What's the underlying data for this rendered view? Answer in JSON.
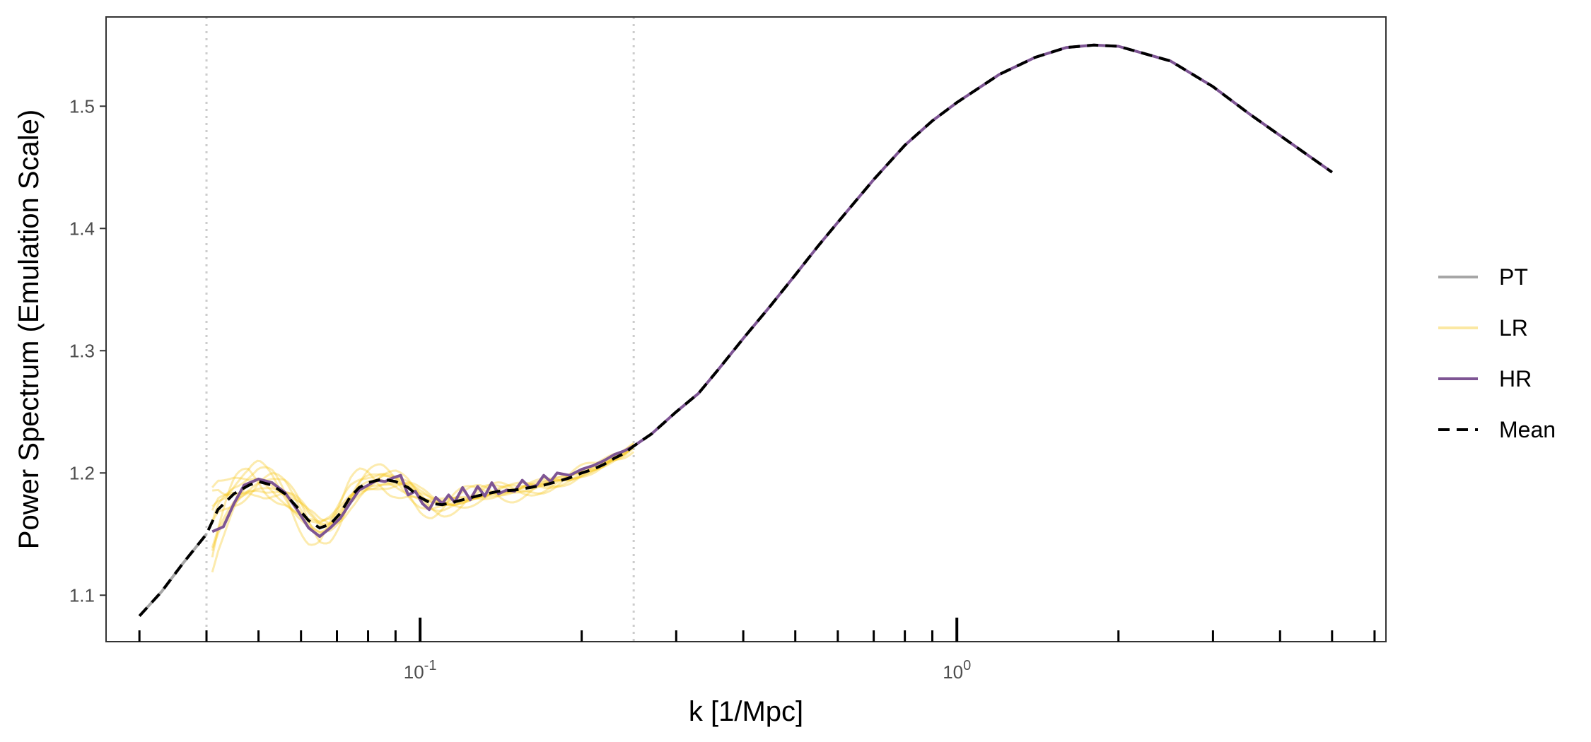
{
  "chart_data": {
    "type": "line",
    "title": "",
    "xlabel": "k [1/Mpc]",
    "ylabel": "Power Spectrum (Emulation Scale)",
    "x_scale": "log10",
    "xlim": [
      0.026,
      6.3
    ],
    "ylim": [
      1.062,
      1.573
    ],
    "x_tick_labels": [
      {
        "value": 0.1,
        "base": "10",
        "exp": "-1"
      },
      {
        "value": 1.0,
        "base": "10",
        "exp": "0"
      }
    ],
    "y_ticks": [
      1.1,
      1.2,
      1.3,
      1.4,
      1.5
    ],
    "y_tick_labels": [
      "1.1",
      "1.2",
      "1.3",
      "1.4",
      "1.5"
    ],
    "vlines": [
      0.04,
      0.25
    ],
    "grid": false,
    "legend_position": "right",
    "colors": {
      "PT": "#a6a6a6",
      "LR": "#f5c518",
      "HR": "#7e5594",
      "Mean": "#000000",
      "vline": "#cccccc"
    },
    "legend": [
      {
        "name": "PT",
        "style": "solid"
      },
      {
        "name": "LR",
        "style": "solid"
      },
      {
        "name": "HR",
        "style": "solid"
      },
      {
        "name": "Mean",
        "style": "dashed"
      }
    ],
    "series": [
      {
        "name": "PT",
        "x": [
          0.03,
          0.033,
          0.036,
          0.04
        ],
        "y": [
          1.083,
          1.103,
          1.125,
          1.15
        ]
      },
      {
        "name": "HR",
        "x": [
          0.041,
          0.043,
          0.045,
          0.047,
          0.05,
          0.053,
          0.056,
          0.059,
          0.062,
          0.065,
          0.068,
          0.071,
          0.074,
          0.077,
          0.08,
          0.083,
          0.086,
          0.089,
          0.092,
          0.095,
          0.098,
          0.101,
          0.104,
          0.107,
          0.11,
          0.113,
          0.116,
          0.12,
          0.124,
          0.128,
          0.132,
          0.136,
          0.14,
          0.145,
          0.15,
          0.155,
          0.16,
          0.165,
          0.17,
          0.175,
          0.18,
          0.19,
          0.2,
          0.21,
          0.22,
          0.23,
          0.24,
          0.25,
          0.27,
          0.3,
          0.33,
          0.36,
          0.4,
          0.45,
          0.5,
          0.55,
          0.6,
          0.7,
          0.8,
          0.9,
          1.0,
          1.2,
          1.4,
          1.6,
          1.8,
          2.0,
          2.5,
          3.0,
          3.5,
          4.0,
          5.0
        ],
        "y": [
          1.152,
          1.156,
          1.175,
          1.19,
          1.195,
          1.192,
          1.184,
          1.17,
          1.155,
          1.148,
          1.155,
          1.163,
          1.175,
          1.186,
          1.19,
          1.194,
          1.193,
          1.196,
          1.198,
          1.182,
          1.185,
          1.175,
          1.17,
          1.18,
          1.175,
          1.182,
          1.176,
          1.188,
          1.178,
          1.189,
          1.181,
          1.192,
          1.183,
          1.186,
          1.185,
          1.194,
          1.188,
          1.19,
          1.198,
          1.193,
          1.2,
          1.198,
          1.203,
          1.206,
          1.21,
          1.215,
          1.218,
          1.222,
          1.232,
          1.25,
          1.265,
          1.285,
          1.31,
          1.337,
          1.362,
          1.385,
          1.405,
          1.44,
          1.468,
          1.488,
          1.503,
          1.526,
          1.54,
          1.548,
          1.55,
          1.549,
          1.537,
          1.516,
          1.494,
          1.476,
          1.446
        ]
      },
      {
        "name": "Mean",
        "x": [
          0.03,
          0.033,
          0.036,
          0.04,
          0.042,
          0.045,
          0.048,
          0.05,
          0.053,
          0.056,
          0.059,
          0.062,
          0.065,
          0.068,
          0.071,
          0.074,
          0.077,
          0.08,
          0.085,
          0.09,
          0.095,
          0.1,
          0.105,
          0.11,
          0.115,
          0.12,
          0.13,
          0.14,
          0.15,
          0.16,
          0.17,
          0.18,
          0.19,
          0.2,
          0.21,
          0.22,
          0.23,
          0.24,
          0.25,
          0.27,
          0.3,
          0.33,
          0.36,
          0.4,
          0.45,
          0.5,
          0.55,
          0.6,
          0.7,
          0.8,
          0.9,
          1.0,
          1.2,
          1.4,
          1.6,
          1.8,
          2.0,
          2.5,
          3.0,
          3.5,
          4.0,
          5.0
        ],
        "y": [
          1.083,
          1.103,
          1.125,
          1.15,
          1.17,
          1.183,
          1.19,
          1.193,
          1.19,
          1.183,
          1.172,
          1.161,
          1.155,
          1.158,
          1.167,
          1.18,
          1.188,
          1.192,
          1.195,
          1.193,
          1.188,
          1.18,
          1.175,
          1.174,
          1.176,
          1.178,
          1.182,
          1.185,
          1.186,
          1.188,
          1.19,
          1.193,
          1.196,
          1.2,
          1.203,
          1.207,
          1.212,
          1.216,
          1.222,
          1.232,
          1.25,
          1.265,
          1.285,
          1.31,
          1.337,
          1.362,
          1.385,
          1.405,
          1.44,
          1.468,
          1.488,
          1.503,
          1.526,
          1.54,
          1.548,
          1.55,
          1.549,
          1.537,
          1.516,
          1.494,
          1.476,
          1.446
        ]
      }
    ],
    "lr_realizations": 10
  }
}
